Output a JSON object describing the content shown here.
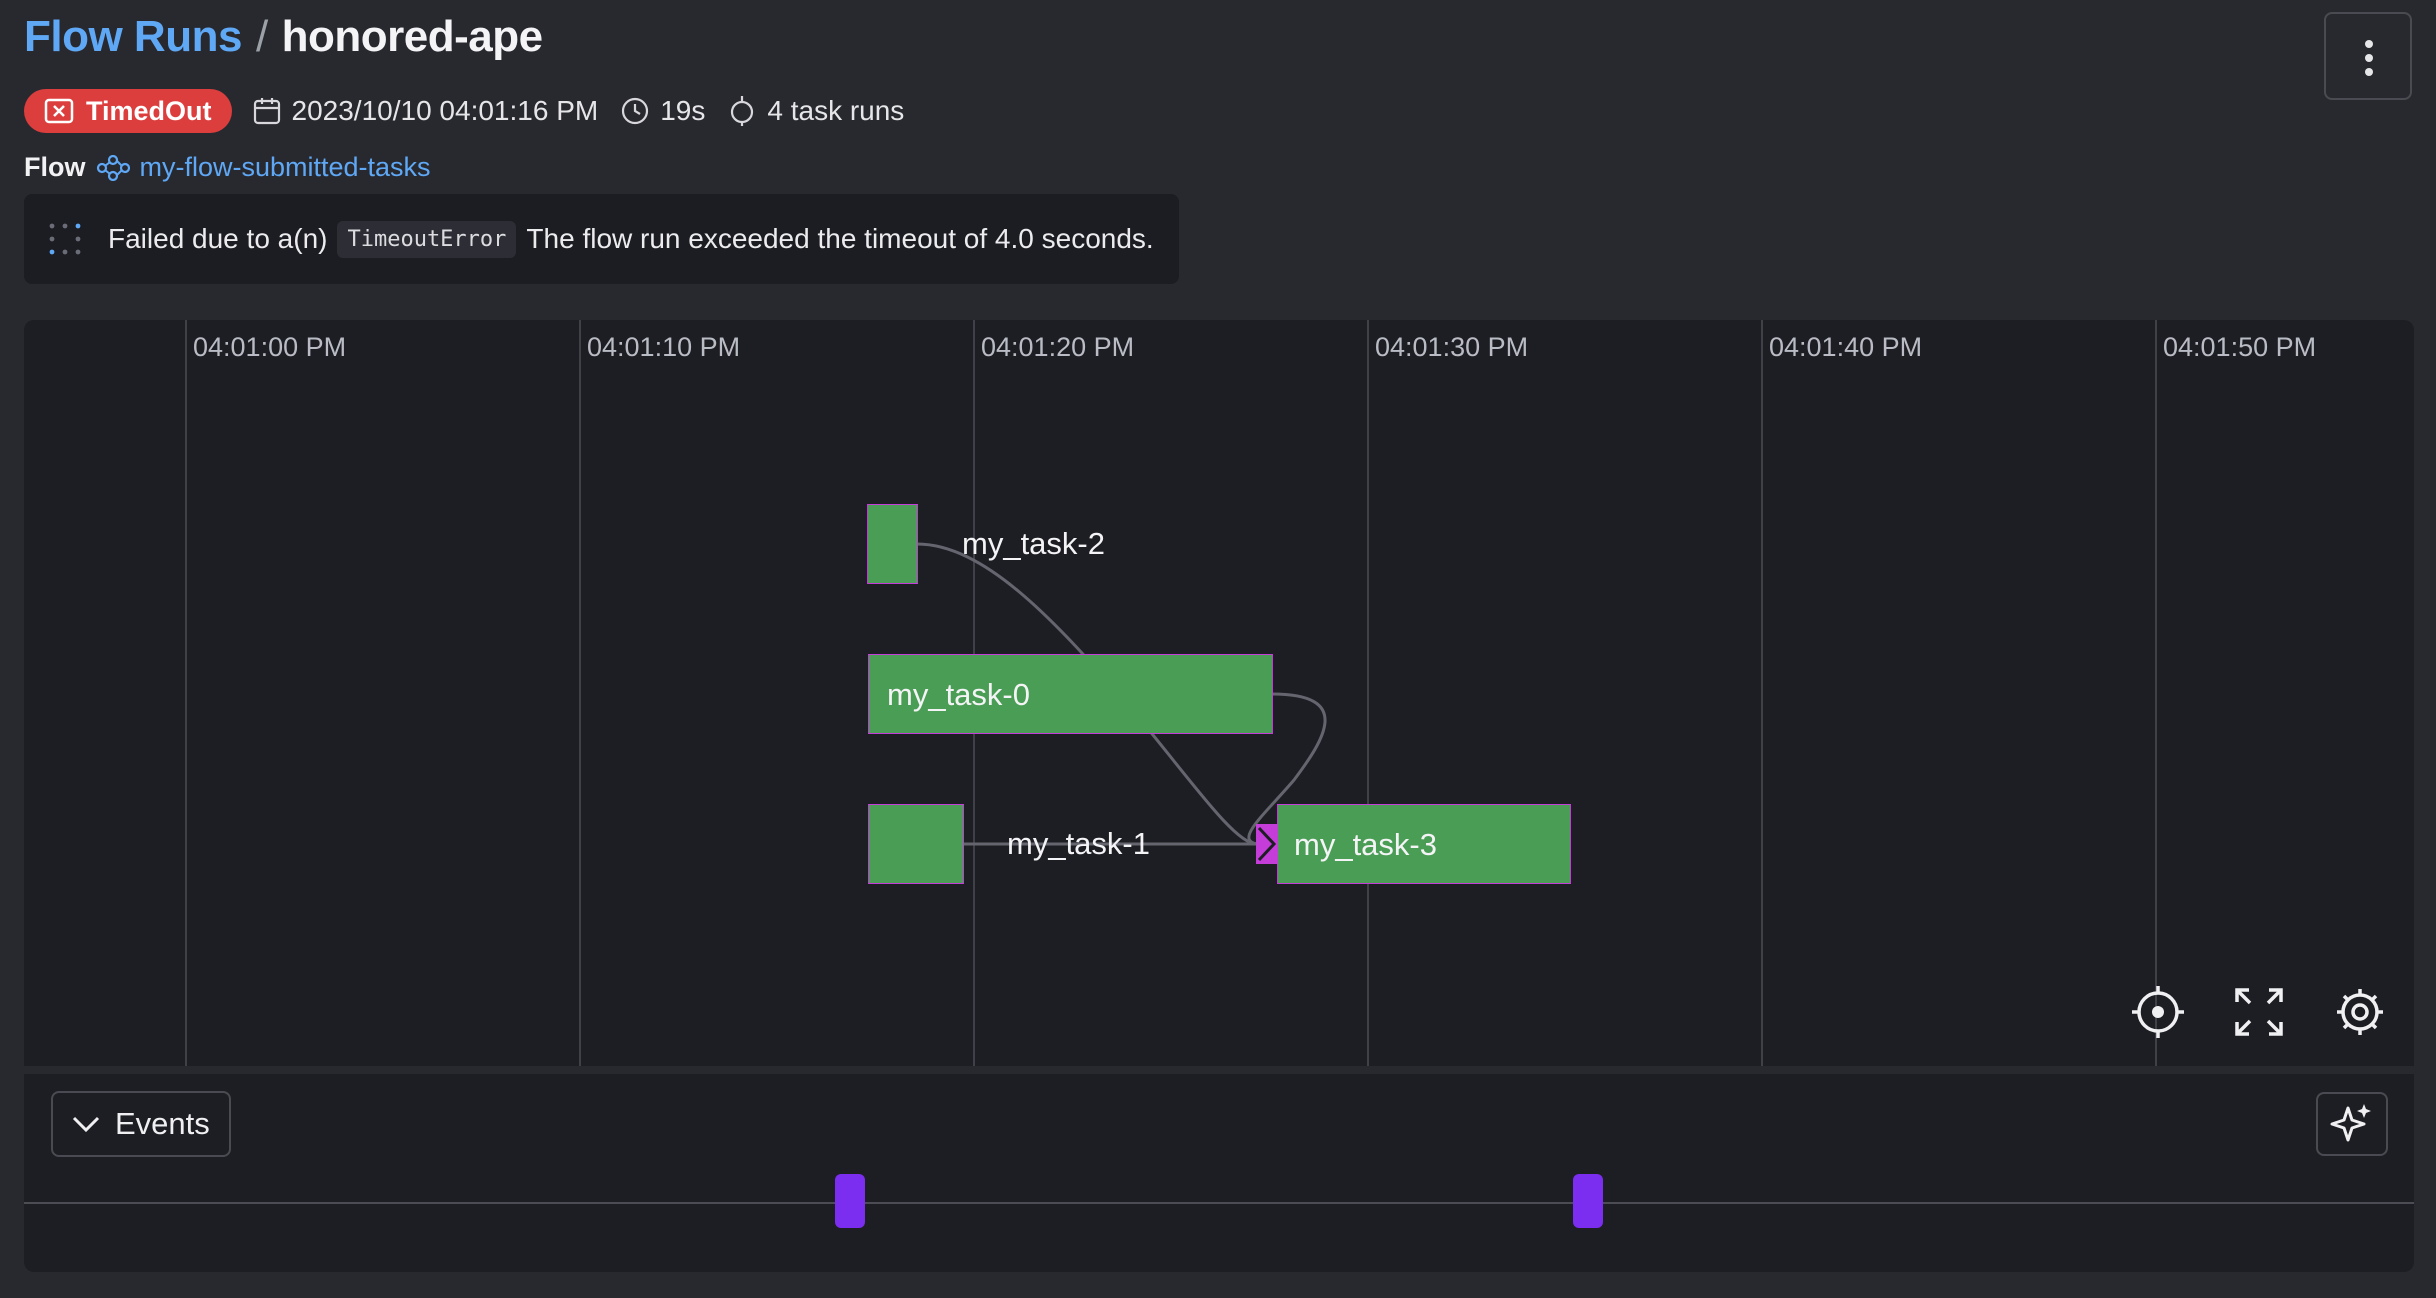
{
  "header": {
    "breadcrumb_root": "Flow Runs",
    "separator": "/",
    "run_name": "honored-ape"
  },
  "meta": {
    "state": "TimedOut",
    "start_time": "2023/10/10 04:01:16 PM",
    "duration": "19s",
    "task_runs": "4 task runs"
  },
  "flow": {
    "label": "Flow",
    "name": "my-flow-submitted-tasks"
  },
  "message": {
    "prefix": "Failed due to a(n)",
    "error": "TimeoutError",
    "suffix": "The flow run exceeded the timeout of 4.0 seconds."
  },
  "timeline": {
    "ticks": [
      "04:01:00 PM",
      "04:01:10 PM",
      "04:01:20 PM",
      "04:01:30 PM",
      "04:01:40 PM",
      "04:01:50 PM"
    ],
    "tasks": [
      {
        "name": "my_task-2"
      },
      {
        "name": "my_task-0"
      },
      {
        "name": "my_task-1"
      },
      {
        "name": "my_task-3"
      }
    ]
  },
  "events": {
    "label": "Events"
  },
  "colors": {
    "accent": "#5fa8f5",
    "timed_out": "#dc3e3e",
    "task_completed": "#4a9d55",
    "event_marker": "#7b2df0"
  }
}
